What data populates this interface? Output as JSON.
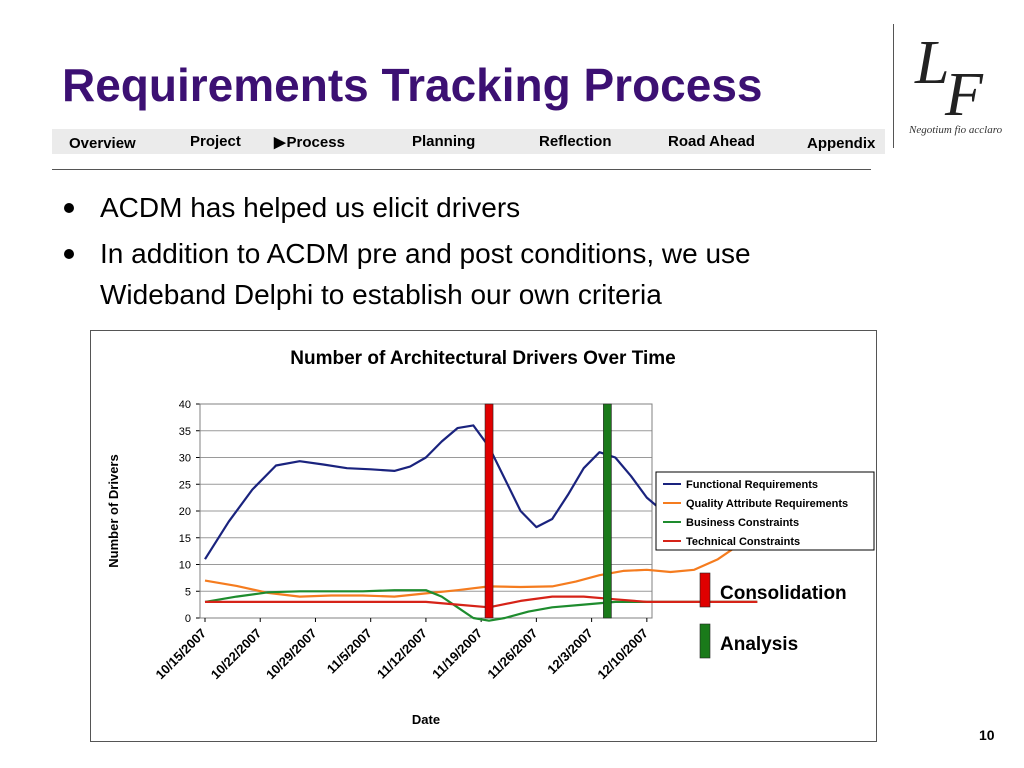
{
  "slide": {
    "title": "Requirements Tracking Process",
    "page_number": "10"
  },
  "logo": {
    "letter_l": "L",
    "letter_f": "F",
    "motto": "Negotium fio acclaro"
  },
  "nav": {
    "items": [
      {
        "label": "Overview",
        "active": false
      },
      {
        "label": "Project",
        "active": false
      },
      {
        "label": "Process",
        "active": true
      },
      {
        "label": "Planning",
        "active": false
      },
      {
        "label": "Reflection",
        "active": false
      },
      {
        "label": "Road Ahead",
        "active": false
      },
      {
        "label": "Appendix",
        "active": false
      }
    ]
  },
  "bullets": [
    "ACDM has helped us elicit drivers",
    "In addition to ACDM pre and post conditions, we use Wideband Delphi to establish our own criteria"
  ],
  "chart_data": {
    "type": "line",
    "title": "Number of Architectural Drivers Over Time",
    "xlabel": "Date",
    "ylabel": "Number of Drivers",
    "x_start": "2007-10-15",
    "categories": [
      "10/15/2007",
      "10/22/2007",
      "10/29/2007",
      "11/5/2007",
      "11/12/2007",
      "11/19/2007",
      "11/26/2007",
      "12/3/2007",
      "12/10/2007"
    ],
    "ylim": [
      0,
      40
    ],
    "yticks": [
      0,
      5,
      10,
      15,
      20,
      25,
      30,
      35,
      40
    ],
    "grid": true,
    "legend_position": "right",
    "series": [
      {
        "name": "Functional Requirements",
        "color": "#1a237e",
        "points": [
          [
            "2007-10-15",
            11
          ],
          [
            "2007-10-18",
            18
          ],
          [
            "2007-10-21",
            24
          ],
          [
            "2007-10-24",
            28.5
          ],
          [
            "2007-10-27",
            29.3
          ],
          [
            "2007-10-30",
            28.7
          ],
          [
            "2007-11-02",
            28
          ],
          [
            "2007-11-05",
            27.8
          ],
          [
            "2007-11-08",
            27.5
          ],
          [
            "2007-11-10",
            28.3
          ],
          [
            "2007-11-12",
            30
          ],
          [
            "2007-11-14",
            33
          ],
          [
            "2007-11-16",
            35.5
          ],
          [
            "2007-11-18",
            36
          ],
          [
            "2007-11-20",
            32
          ],
          [
            "2007-11-22",
            26
          ],
          [
            "2007-11-24",
            20
          ],
          [
            "2007-11-26",
            17
          ],
          [
            "2007-11-28",
            18.5
          ],
          [
            "2007-11-30",
            23
          ],
          [
            "2007-12-02",
            28
          ],
          [
            "2007-12-04",
            31
          ],
          [
            "2007-12-06",
            30
          ],
          [
            "2007-12-08",
            26.5
          ],
          [
            "2007-12-10",
            22.5
          ],
          [
            "2007-12-12",
            20
          ],
          [
            "2007-12-14",
            19.4
          ],
          [
            "2007-12-16",
            19.6
          ],
          [
            "2007-12-18",
            20.2
          ],
          [
            "2007-12-20",
            21
          ],
          [
            "2007-12-21",
            21
          ]
        ]
      },
      {
        "name": "Quality Attribute Requirements",
        "color": "#f57c1f",
        "points": [
          [
            "2007-10-15",
            7
          ],
          [
            "2007-10-19",
            6
          ],
          [
            "2007-10-23",
            4.7
          ],
          [
            "2007-10-27",
            4
          ],
          [
            "2007-10-31",
            4.2
          ],
          [
            "2007-11-04",
            4.2
          ],
          [
            "2007-11-08",
            4
          ],
          [
            "2007-11-12",
            4.6
          ],
          [
            "2007-11-16",
            5.2
          ],
          [
            "2007-11-20",
            5.9
          ],
          [
            "2007-11-24",
            5.8
          ],
          [
            "2007-11-28",
            5.9
          ],
          [
            "2007-12-01",
            6.8
          ],
          [
            "2007-12-04",
            8
          ],
          [
            "2007-12-07",
            8.8
          ],
          [
            "2007-12-10",
            9
          ],
          [
            "2007-12-13",
            8.6
          ],
          [
            "2007-12-16",
            9
          ],
          [
            "2007-12-19",
            11
          ],
          [
            "2007-12-22",
            14
          ],
          [
            "2007-12-24",
            16
          ]
        ]
      },
      {
        "name": "Business Constraints",
        "color": "#1e8c2e",
        "points": [
          [
            "2007-10-15",
            3
          ],
          [
            "2007-10-19",
            4
          ],
          [
            "2007-10-23",
            4.8
          ],
          [
            "2007-10-27",
            5
          ],
          [
            "2007-10-31",
            5
          ],
          [
            "2007-11-04",
            5
          ],
          [
            "2007-11-08",
            5.2
          ],
          [
            "2007-11-12",
            5.2
          ],
          [
            "2007-11-14",
            4
          ],
          [
            "2007-11-16",
            2
          ],
          [
            "2007-11-18",
            0
          ],
          [
            "2007-11-20",
            -0.5
          ],
          [
            "2007-11-22",
            0
          ],
          [
            "2007-11-25",
            1.2
          ],
          [
            "2007-11-28",
            2
          ],
          [
            "2007-12-02",
            2.5
          ],
          [
            "2007-12-06",
            3
          ],
          [
            "2007-12-10",
            3
          ],
          [
            "2007-12-24",
            3
          ]
        ]
      },
      {
        "name": "Technical Constraints",
        "color": "#d62318",
        "points": [
          [
            "2007-10-15",
            3
          ],
          [
            "2007-11-12",
            3
          ],
          [
            "2007-11-16",
            2.5
          ],
          [
            "2007-11-20",
            2
          ],
          [
            "2007-11-24",
            3.2
          ],
          [
            "2007-11-28",
            4
          ],
          [
            "2007-12-02",
            4
          ],
          [
            "2007-12-06",
            3.5
          ],
          [
            "2007-12-10",
            3
          ],
          [
            "2007-12-24",
            3
          ]
        ]
      }
    ],
    "markers": [
      {
        "date": "2007-11-20",
        "label": "Consolidation",
        "color": "#e00000"
      },
      {
        "date": "2007-12-05",
        "label": "Analysis",
        "color": "#1a7a1a"
      }
    ]
  }
}
